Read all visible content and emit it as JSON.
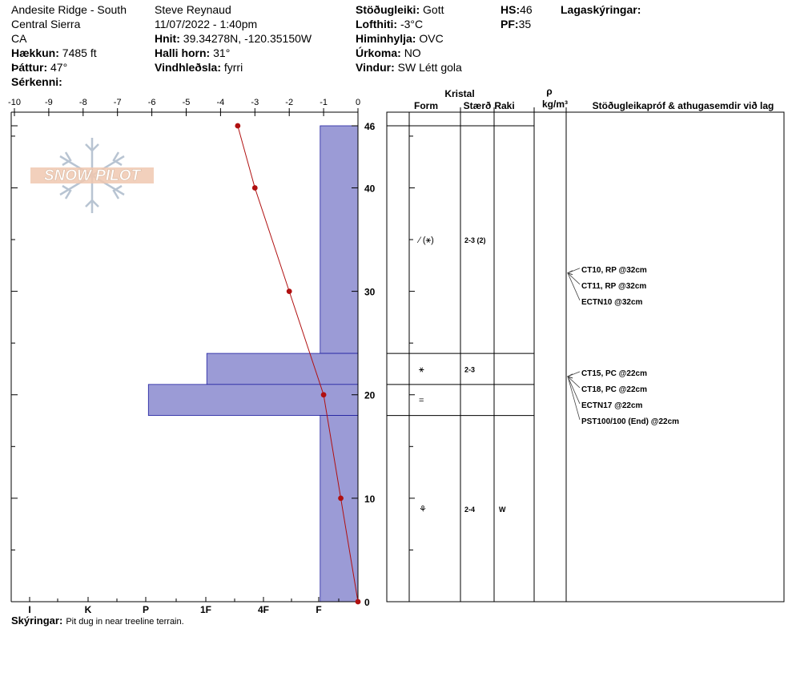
{
  "header": {
    "location_name": "Andesite Ridge - South",
    "region": "Central Sierra",
    "state": "CA",
    "elevation_label": "Hækkun:",
    "elevation_value": "7485 ft",
    "aspect_label": "Þáttur:",
    "aspect_value": "47°",
    "features_label": "Sérkenni:",
    "observer": "Steve Reynaud",
    "datetime": "11/07/2022 - 1:40pm",
    "coords_label": "Hnit:",
    "coords_value": "39.34278N, -120.35150W",
    "slope_label": "Halli horn:",
    "slope_value": "31°",
    "wind_loading_label": "Vindhleðsla:",
    "wind_loading_value": "fyrri",
    "stability_label": "Stöðugleiki:",
    "stability_value": "Gott",
    "air_temp_label": "Lofthiti:",
    "air_temp_value": "-3°C",
    "sky_label": "Himinhylja:",
    "sky_value": "OVC",
    "precip_label": "Úrkoma:",
    "precip_value": "NO",
    "wind_label": "Vindur:",
    "wind_value": "SW Létt gola",
    "hs_label": "HS:",
    "hs_value": "46",
    "pf_label": "PF:",
    "pf_value": "35",
    "legend_label": "Lagaskýringar:"
  },
  "footer": {
    "notes_label": "Skýringar:",
    "notes_value": "Pit dug in near treeline terrain."
  },
  "logo": {
    "text": "SNOW PILOT"
  },
  "chart_data": {
    "type": "snow_profile",
    "temperature_axis": {
      "ticks": [
        "-10",
        "-9",
        "-8",
        "-7",
        "-6",
        "-5",
        "-4",
        "-3",
        "-2",
        "-1",
        "0"
      ],
      "range": [
        -10,
        0
      ]
    },
    "hardness_axis": {
      "ticks": [
        "I",
        "K",
        "P",
        "1F",
        "4F",
        "F"
      ],
      "range_note": "hardness bars extend left from right edge"
    },
    "height_axis": {
      "ticks": [
        "46",
        "40",
        "30",
        "20",
        "10",
        "0"
      ],
      "range": [
        0,
        46
      ],
      "unit": "cm"
    },
    "temperature_profile": [
      {
        "height": 46,
        "temp": -3.5
      },
      {
        "height": 40,
        "temp": -3.0
      },
      {
        "height": 30,
        "temp": -2.0
      },
      {
        "height": 20,
        "temp": -1.0
      },
      {
        "height": 10,
        "temp": -0.5
      },
      {
        "height": 0,
        "temp": 0.0
      }
    ],
    "layers": [
      {
        "top": 46,
        "bottom": 24,
        "hardness_depth": 1.1,
        "form": "⁄ (⚹)",
        "size": "2-3 (2)",
        "moisture": ""
      },
      {
        "top": 24,
        "bottom": 21,
        "hardness_depth": 4.4,
        "form": "⚹",
        "size": "2-3",
        "moisture": ""
      },
      {
        "top": 21,
        "bottom": 18,
        "hardness_depth": 6.1,
        "form": "=",
        "size": "",
        "moisture": ""
      },
      {
        "top": 18,
        "bottom": 0,
        "hardness_depth": 1.1,
        "form": "⚘",
        "size": "2-4",
        "moisture": "W"
      }
    ],
    "table_headers": {
      "crystal": "Kristal",
      "form": "Form",
      "size": "Stærð",
      "moisture": "Raki",
      "density_symbol": "ρ",
      "density_unit": "kg/m³",
      "tests": "Stöðugleikapróf & athugasemdir við lag"
    },
    "stability_tests": [
      {
        "label": "CT10, RP @32cm",
        "height": 32
      },
      {
        "label": "CT11, RP @32cm",
        "height": 32
      },
      {
        "label": "ECTN10 @32cm",
        "height": 32
      },
      {
        "label": "CT15, PC @22cm",
        "height": 22
      },
      {
        "label": "CT18, PC @22cm",
        "height": 22
      },
      {
        "label": "ECTN17 @22cm",
        "height": 22
      },
      {
        "label": "PST100/100 (End) @22cm",
        "height": 22
      }
    ],
    "colors": {
      "hardness_fill": "#9b9bd6",
      "hardness_stroke": "#2020a0",
      "temp_line": "#b01010",
      "test_arrow": "#444444"
    }
  }
}
